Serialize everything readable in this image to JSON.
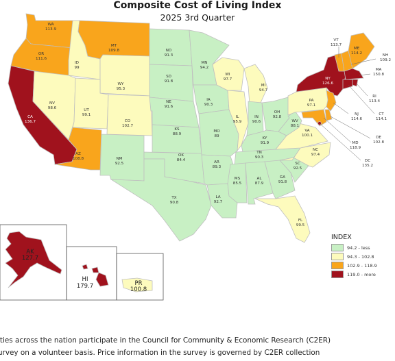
{
  "title": "Composite Cost of Living Index",
  "subtitle": "2025 3rd Quarter",
  "colors": {
    "tier1": "#c8f0c4",
    "tier2": "#fdfbbd",
    "tier3": "#f9a51c",
    "tier4": "#a0121d",
    "border": "#bfbfbf",
    "background": "#ffffff"
  },
  "legend": {
    "title": "INDEX",
    "items": [
      {
        "label": "94.2 - less",
        "color": "#c8f0c4"
      },
      {
        "label": "94.3 - 102.8",
        "color": "#fdfbbd"
      },
      {
        "label": "102.9 - 118.9",
        "color": "#f9a51c"
      },
      {
        "label": "119.0 - more",
        "color": "#a0121d"
      }
    ]
  },
  "states": {
    "WA": {
      "abbr": "WA",
      "value": "113.9"
    },
    "OR": {
      "abbr": "OR",
      "value": "111.6"
    },
    "CA": {
      "abbr": "CA",
      "value": "136.7"
    },
    "ID": {
      "abbr": "ID",
      "value": "99"
    },
    "NV": {
      "abbr": "NV",
      "value": "98.6"
    },
    "MT": {
      "abbr": "MT",
      "value": "109.8"
    },
    "WY": {
      "abbr": "WY",
      "value": "95.3"
    },
    "UT": {
      "abbr": "UT",
      "value": "99.1"
    },
    "AZ": {
      "abbr": "AZ",
      "value": "108.8"
    },
    "CO": {
      "abbr": "CO",
      "value": "102.7"
    },
    "NM": {
      "abbr": "NM",
      "value": "92.5"
    },
    "ND": {
      "abbr": "ND",
      "value": "91.3"
    },
    "SD": {
      "abbr": "SD",
      "value": "91.8"
    },
    "NE": {
      "abbr": "NE",
      "value": "91.6"
    },
    "KS": {
      "abbr": "KS",
      "value": "88.9"
    },
    "OK": {
      "abbr": "OK",
      "value": "84.4"
    },
    "TX": {
      "abbr": "TX",
      "value": "90.8"
    },
    "MN": {
      "abbr": "MN",
      "value": "94.2"
    },
    "IA": {
      "abbr": "IA",
      "value": "90.3"
    },
    "MO": {
      "abbr": "MO",
      "value": "89"
    },
    "AR": {
      "abbr": "AR",
      "value": "89.3"
    },
    "LA": {
      "abbr": "LA",
      "value": "92.7"
    },
    "WI": {
      "abbr": "WI",
      "value": "97.7"
    },
    "IL": {
      "abbr": "IL",
      "value": "95.9"
    },
    "MI": {
      "abbr": "MI",
      "value": "94.7"
    },
    "IN": {
      "abbr": "IN",
      "value": "90.6"
    },
    "OH": {
      "abbr": "OH",
      "value": "92.8"
    },
    "KY": {
      "abbr": "KY",
      "value": "91.9"
    },
    "TN": {
      "abbr": "TN",
      "value": "90.3"
    },
    "MS": {
      "abbr": "MS",
      "value": "85.5"
    },
    "AL": {
      "abbr": "AL",
      "value": "87.9"
    },
    "GA": {
      "abbr": "GA",
      "value": "91.8"
    },
    "FL": {
      "abbr": "FL",
      "value": "99.5"
    },
    "SC": {
      "abbr": "SC",
      "value": "92.5"
    },
    "NC": {
      "abbr": "NC",
      "value": "97.4"
    },
    "VA": {
      "abbr": "VA",
      "value": "100.1"
    },
    "WV": {
      "abbr": "WV",
      "value": "88.1"
    },
    "PA": {
      "abbr": "PA",
      "value": "97.1"
    },
    "NY": {
      "abbr": "NY",
      "value": "126.6"
    },
    "VT": {
      "abbr": "VT",
      "value": "113.7"
    },
    "NH": {
      "abbr": "NH",
      "value": "109.2"
    },
    "ME": {
      "abbr": "ME",
      "value": "114.2"
    },
    "MA": {
      "abbr": "MA",
      "value": "150.8"
    },
    "RI": {
      "abbr": "RI",
      "value": "113.4"
    },
    "CT": {
      "abbr": "CT",
      "value": "114.1"
    },
    "NJ": {
      "abbr": "NJ",
      "value": "114.6"
    },
    "DE": {
      "abbr": "DE",
      "value": "102.8"
    },
    "MD": {
      "abbr": "MD",
      "value": "118.9"
    },
    "DC": {
      "abbr": "DC",
      "value": "135.2"
    },
    "AK": {
      "abbr": "AK",
      "value": "127.7"
    },
    "HI": {
      "abbr": "HI",
      "value": "179.7"
    },
    "PR": {
      "abbr": "PR",
      "value": "100.8"
    }
  },
  "footer": {
    "line1": "ities across the nation participate in the Council for Community & Economic Research (C2ER)",
    "line2": "urvey on a volunteer basis. Price information in the survey is governed by C2ER collection"
  }
}
